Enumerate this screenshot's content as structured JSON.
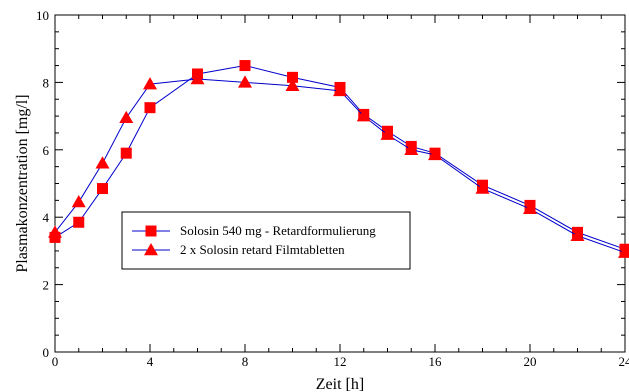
{
  "chart_data": {
    "type": "line",
    "title": "",
    "xlabel": "Zeit [h]",
    "ylabel": "Plasmakonzentration [mg/l]",
    "xlim": [
      0,
      24
    ],
    "ylim": [
      0,
      10
    ],
    "x_ticks": [
      0,
      4,
      8,
      12,
      16,
      20,
      24
    ],
    "y_ticks": [
      0,
      2,
      4,
      6,
      8,
      10
    ],
    "grid": false,
    "legend_position": "lower-left",
    "series": [
      {
        "name": "Solosin 540 mg - Retardformulierung",
        "marker": "square",
        "color": "#ff0000",
        "line_color": "#0000cc",
        "x": [
          0,
          1,
          2,
          3,
          4,
          6,
          8,
          10,
          12,
          13,
          14,
          15,
          16,
          18,
          20,
          22,
          24
        ],
        "values": [
          3.4,
          3.85,
          4.85,
          5.9,
          7.25,
          8.25,
          8.5,
          8.15,
          7.85,
          7.05,
          6.55,
          6.1,
          5.9,
          4.95,
          4.35,
          3.55,
          3.05
        ]
      },
      {
        "name": "2 x Solosin retard Filmtabletten",
        "marker": "triangle",
        "color": "#ff0000",
        "line_color": "#0000cc",
        "x": [
          0,
          1,
          2,
          3,
          4,
          6,
          8,
          10,
          12,
          13,
          14,
          15,
          16,
          18,
          20,
          22,
          24
        ],
        "values": [
          3.55,
          4.45,
          5.6,
          6.95,
          7.95,
          8.1,
          8.0,
          7.9,
          7.75,
          7.0,
          6.45,
          6.0,
          5.85,
          4.85,
          4.25,
          3.45,
          2.95
        ]
      }
    ]
  }
}
